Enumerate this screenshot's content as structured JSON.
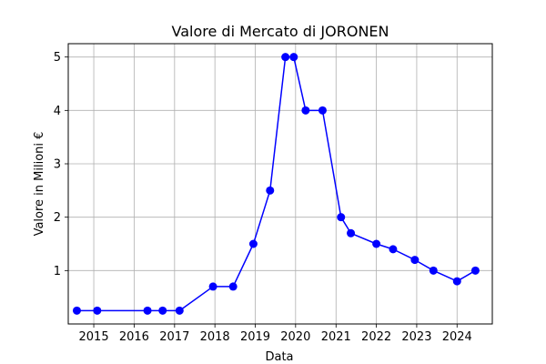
{
  "chart_data": {
    "type": "line",
    "title": "Valore di Mercato di JORONEN",
    "xlabel": "Data",
    "ylabel": "Valore in Milioni €",
    "grid": true,
    "line_color": "#0000ff",
    "marker": "circle",
    "x_ticks": [
      "2015",
      "2016",
      "2017",
      "2018",
      "2019",
      "2020",
      "2021",
      "2022",
      "2023",
      "2024"
    ],
    "y_ticks": [
      "1",
      "2",
      "3",
      "4",
      "5"
    ],
    "xlim": [
      "2014-05-15",
      "2024-11-15"
    ],
    "ylim": [
      0,
      5.25
    ],
    "series": [
      {
        "points": [
          {
            "x": "2014-08-01",
            "y": 0.25
          },
          {
            "x": "2015-02-01",
            "y": 0.25
          },
          {
            "x": "2016-05-01",
            "y": 0.25
          },
          {
            "x": "2016-09-15",
            "y": 0.25
          },
          {
            "x": "2017-02-15",
            "y": 0.25
          },
          {
            "x": "2017-12-15",
            "y": 0.7
          },
          {
            "x": "2018-06-15",
            "y": 0.7
          },
          {
            "x": "2018-12-15",
            "y": 1.5
          },
          {
            "x": "2019-05-15",
            "y": 2.5
          },
          {
            "x": "2019-10-01",
            "y": 5
          },
          {
            "x": "2019-12-15",
            "y": 5
          },
          {
            "x": "2020-04-01",
            "y": 4
          },
          {
            "x": "2020-09-01",
            "y": 4
          },
          {
            "x": "2021-02-15",
            "y": 2
          },
          {
            "x": "2021-05-15",
            "y": 1.7
          },
          {
            "x": "2022-01-01",
            "y": 1.5
          },
          {
            "x": "2022-06-01",
            "y": 1.4
          },
          {
            "x": "2022-12-15",
            "y": 1.2
          },
          {
            "x": "2023-06-01",
            "y": 1
          },
          {
            "x": "2024-01-01",
            "y": 0.8
          },
          {
            "x": "2024-06-15",
            "y": 1
          }
        ]
      }
    ]
  }
}
